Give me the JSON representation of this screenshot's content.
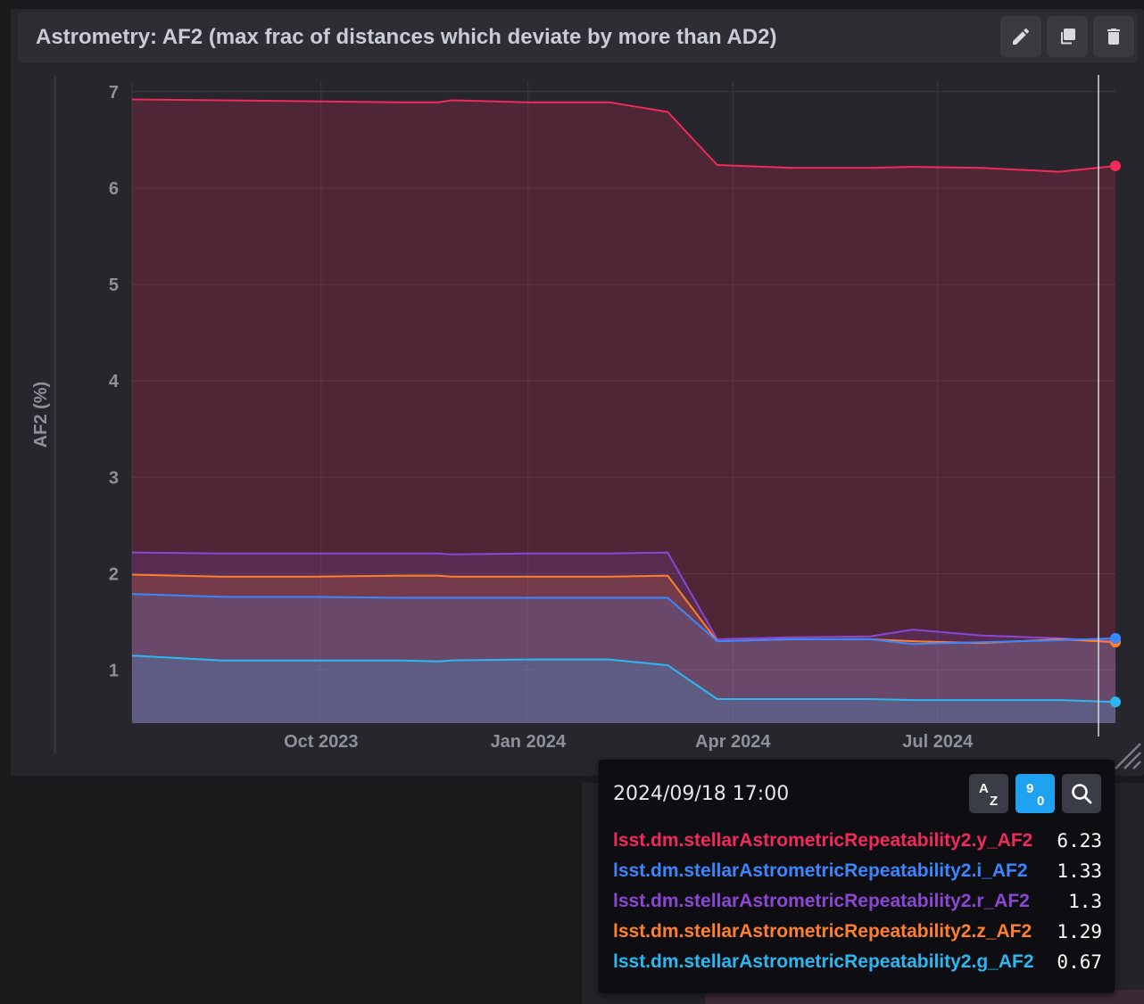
{
  "panel": {
    "title": "Astrometry: AF2 (max frac of distances which deviate by more than AD2)",
    "buttons": [
      {
        "icon": "pencil-icon",
        "label": "Edit"
      },
      {
        "icon": "copy-icon",
        "label": "Duplicate"
      },
      {
        "icon": "trash-icon",
        "label": "Delete"
      }
    ]
  },
  "chart_data": {
    "type": "area",
    "ylabel": "AF2 (%)",
    "xlabel": "",
    "xlim": [
      "2023-07-09",
      "2024-09-18"
    ],
    "ylim": [
      0.45,
      7.1
    ],
    "x_ticks": [
      {
        "date": "2023-10-01",
        "label": "Oct 2023"
      },
      {
        "date": "2024-01-01",
        "label": "Jan 2024"
      },
      {
        "date": "2024-04-01",
        "label": "Apr 2024"
      },
      {
        "date": "2024-07-01",
        "label": "Jul 2024"
      }
    ],
    "y_ticks": [
      1,
      2,
      3,
      4,
      5,
      6,
      7
    ],
    "grid": true,
    "cursor_date": "2024-09-18",
    "x": [
      "2023-07-09",
      "2023-08-18",
      "2023-09-27",
      "2023-11-06",
      "2023-11-22",
      "2023-11-28",
      "2024-01-01",
      "2024-02-06",
      "2024-03-03",
      "2024-03-25",
      "2024-04-27",
      "2024-06-01",
      "2024-06-20",
      "2024-07-20",
      "2024-08-24",
      "2024-09-18"
    ],
    "series": [
      {
        "name": "lsst.dm.stellarAstrometricRepeatability2.y_AF2",
        "color": "#f2295c",
        "values": [
          6.92,
          6.91,
          6.9,
          6.89,
          6.89,
          6.91,
          6.89,
          6.89,
          6.79,
          6.24,
          6.21,
          6.21,
          6.22,
          6.21,
          6.17,
          6.23
        ]
      },
      {
        "name": "lsst.dm.stellarAstrometricRepeatability2.r_AF2",
        "color": "#8b47d4",
        "values": [
          2.22,
          2.21,
          2.21,
          2.21,
          2.21,
          2.2,
          2.21,
          2.21,
          2.22,
          1.32,
          1.34,
          1.35,
          1.42,
          1.36,
          1.33,
          1.3
        ]
      },
      {
        "name": "lsst.dm.stellarAstrometricRepeatability2.z_AF2",
        "color": "#ff7f2a",
        "values": [
          1.99,
          1.97,
          1.97,
          1.98,
          1.98,
          1.97,
          1.97,
          1.97,
          1.98,
          1.3,
          1.32,
          1.32,
          1.3,
          1.28,
          1.32,
          1.29
        ]
      },
      {
        "name": "lsst.dm.stellarAstrometricRepeatability2.i_AF2",
        "color": "#3a86ff",
        "values": [
          1.79,
          1.76,
          1.76,
          1.75,
          1.75,
          1.75,
          1.75,
          1.75,
          1.75,
          1.3,
          1.32,
          1.32,
          1.27,
          1.29,
          1.31,
          1.33
        ]
      },
      {
        "name": "lsst.dm.stellarAstrometricRepeatability2.g_AF2",
        "color": "#2bb8f2",
        "values": [
          1.15,
          1.1,
          1.1,
          1.1,
          1.09,
          1.1,
          1.11,
          1.11,
          1.05,
          0.7,
          0.7,
          0.7,
          0.69,
          0.69,
          0.69,
          0.67
        ]
      }
    ]
  },
  "tooltip": {
    "timestamp": "2024/09/18 17:00",
    "sort_alpha_icon": "sort-alpha-icon",
    "sort_numeric_icon": "sort-numeric-icon",
    "search_icon": "search-icon",
    "rows": [
      {
        "name": "lsst.dm.stellarAstrometricRepeatability2.y_AF2",
        "value": "6.23",
        "color": "#f2295c"
      },
      {
        "name": "lsst.dm.stellarAstrometricRepeatability2.i_AF2",
        "value": "1.33",
        "color": "#3a86ff"
      },
      {
        "name": "lsst.dm.stellarAstrometricRepeatability2.r_AF2",
        "value": "1.3",
        "color": "#8b47d4"
      },
      {
        "name": "lsst.dm.stellarAstrometricRepeatability2.z_AF2",
        "value": "1.29",
        "color": "#ff7f2a"
      },
      {
        "name": "lsst.dm.stellarAstrometricRepeatability2.g_AF2",
        "value": "0.67",
        "color": "#2bb8f2"
      }
    ]
  }
}
